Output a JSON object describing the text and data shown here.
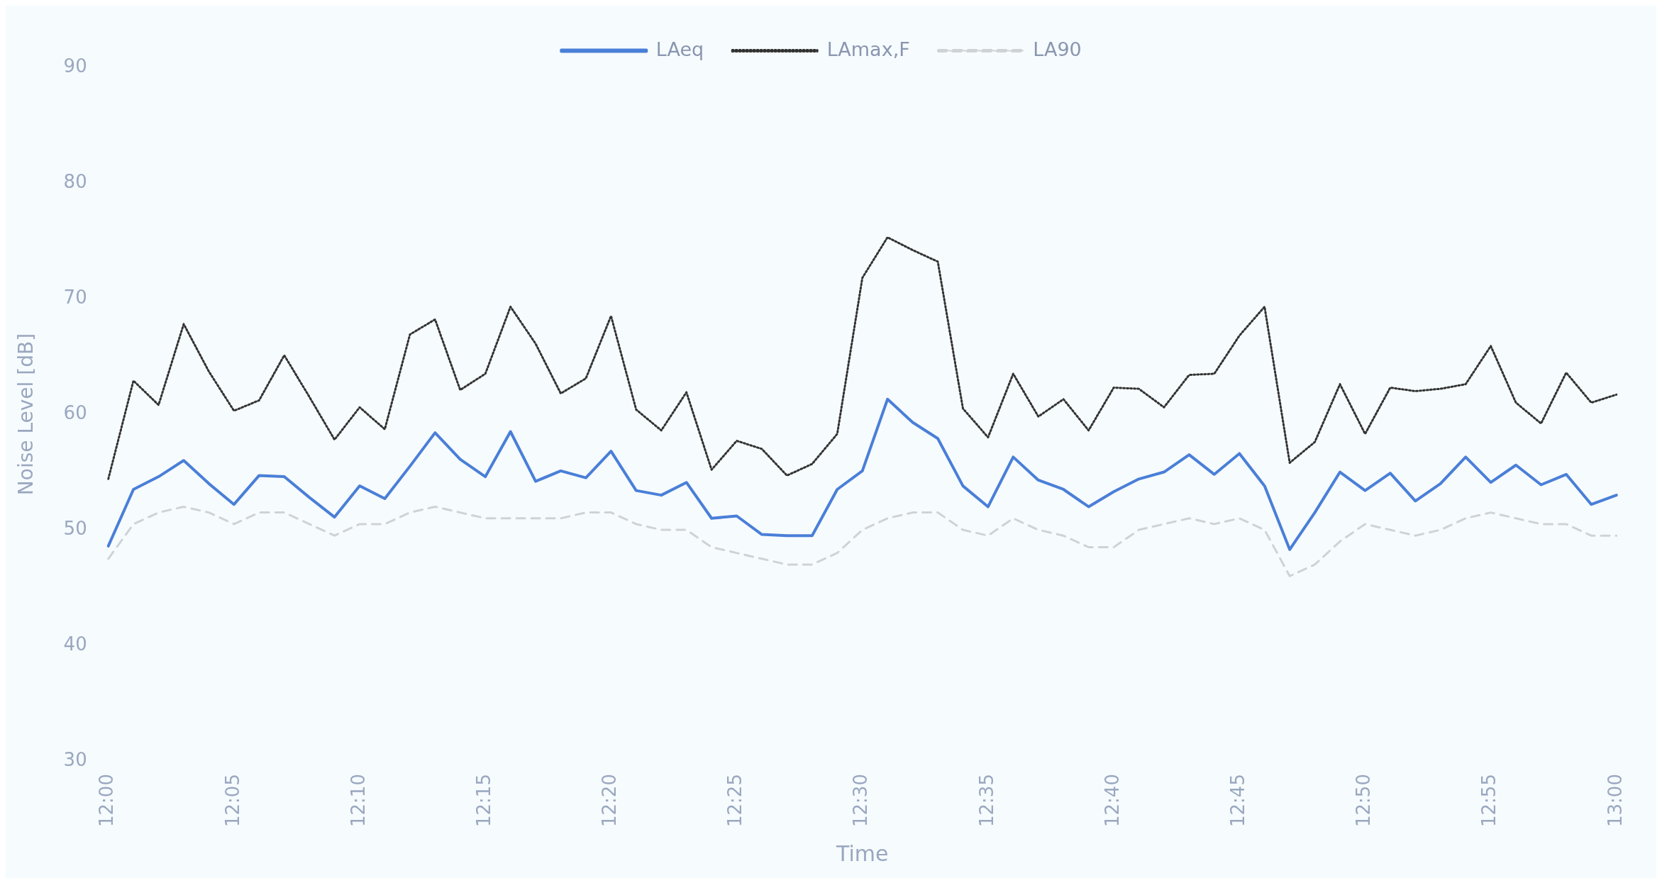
{
  "chart_data": {
    "type": "line",
    "xlabel": "Time",
    "ylabel": "Noise Level [dB]",
    "categories": [
      "12:00",
      null,
      null,
      null,
      null,
      "12:05",
      null,
      null,
      null,
      null,
      "12:10",
      null,
      null,
      null,
      null,
      "12:15",
      null,
      null,
      null,
      null,
      "12:20",
      null,
      null,
      null,
      null,
      "12:25",
      null,
      null,
      null,
      null,
      "12:30",
      null,
      null,
      null,
      null,
      "12:35",
      null,
      null,
      null,
      null,
      "12:40",
      null,
      null,
      null,
      null,
      "12:45",
      null,
      null,
      null,
      null,
      "12:50",
      null,
      null,
      null,
      null,
      "12:55",
      null,
      null,
      null,
      null,
      "13:00"
    ],
    "ylim": [
      30,
      90
    ],
    "yticks": [
      30,
      40,
      50,
      60,
      70,
      80,
      90
    ],
    "grid": false,
    "legend": "top",
    "marker": "none",
    "series": [
      {
        "name": "LAeq",
        "color": "#4a7fd8",
        "line_style": "solid",
        "values": [
          48.6,
          53.5,
          54.6,
          56,
          54,
          52.2,
          54.7,
          54.6,
          52.8,
          51.1,
          53.8,
          52.7,
          55.5,
          58.4,
          56.1,
          54.6,
          58.5,
          54.2,
          55.1,
          54.5,
          56.8,
          53.4,
          53,
          54.1,
          51,
          51.2,
          49.6,
          49.5,
          49.5,
          53.5,
          55.1,
          61.3,
          59.3,
          57.9,
          53.8,
          52,
          56.3,
          54.3,
          53.5,
          52,
          53.3,
          54.4,
          55,
          56.5,
          54.8,
          56.6,
          53.8,
          48.3,
          51.5,
          55,
          53.4,
          54.9,
          52.5,
          54,
          56.3,
          54.1,
          55.6,
          53.9,
          54.8,
          52.2,
          53
        ]
      },
      {
        "name": "LAmax,F",
        "color": "#333333",
        "line_style": "dotted",
        "values": [
          54.4,
          62.9,
          60.8,
          67.8,
          63.7,
          60.3,
          61.2,
          65.1,
          61.5,
          57.8,
          60.6,
          58.7,
          66.9,
          68.2,
          62.1,
          63.5,
          69.3,
          66.1,
          61.8,
          63.1,
          68.5,
          60.4,
          58.6,
          61.9,
          55.2,
          57.7,
          57,
          54.7,
          55.7,
          58.3,
          71.8,
          75.3,
          74.2,
          73.2,
          60.5,
          58,
          63.5,
          59.8,
          61.3,
          58.6,
          62.3,
          62.2,
          60.6,
          63.4,
          63.5,
          66.8,
          69.3,
          55.8,
          57.6,
          62.6,
          58.3,
          62.3,
          62,
          62.2,
          62.6,
          65.9,
          61,
          59.2,
          63.6,
          61,
          61.7
        ]
      },
      {
        "name": "LA90",
        "color": "#cfd3d6",
        "line_style": "dashed",
        "values": [
          47.5,
          50.5,
          51.5,
          52,
          51.5,
          50.5,
          51.5,
          51.5,
          50.5,
          49.5,
          50.5,
          50.5,
          51.5,
          52,
          51.5,
          51,
          51,
          51,
          51,
          51.5,
          51.5,
          50.5,
          50,
          50,
          48.5,
          48,
          47.5,
          47,
          47,
          48,
          50,
          51,
          51.5,
          51.5,
          50,
          49.5,
          51,
          50,
          49.5,
          48.5,
          48.5,
          50,
          50.5,
          51,
          50.5,
          51,
          50,
          46,
          47,
          49,
          50.5,
          50,
          49.5,
          50,
          51,
          51.5,
          51,
          50.5,
          50.5,
          49.5,
          49.5
        ]
      }
    ]
  }
}
